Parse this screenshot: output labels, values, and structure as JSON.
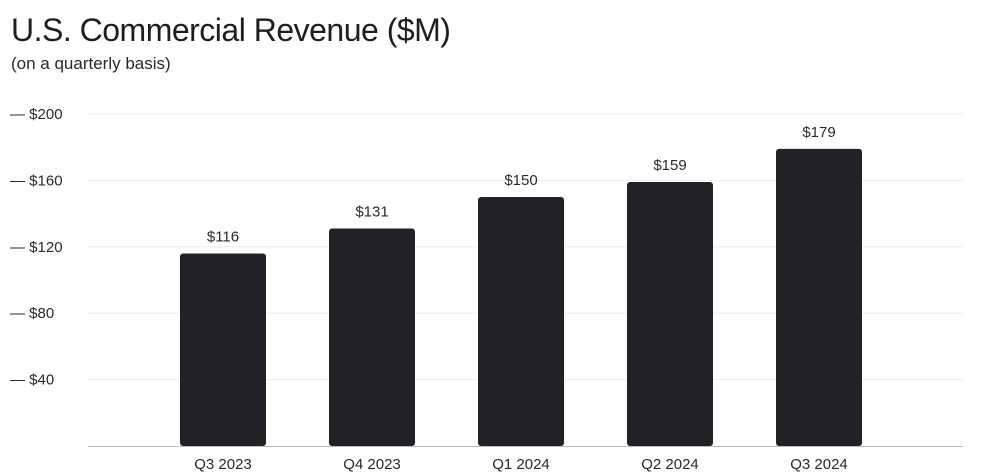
{
  "chart_data": {
    "type": "bar",
    "title": "U.S. Commercial Revenue ($M)",
    "subtitle": "(on a quarterly basis)",
    "categories": [
      "Q3 2023",
      "Q4 2023",
      "Q1 2024",
      "Q2 2024",
      "Q3 2024"
    ],
    "values": [
      116,
      131,
      150,
      159,
      179
    ],
    "value_labels": [
      "$116",
      "$131",
      "$150",
      "$159",
      "$179"
    ],
    "y_ticks": [
      200,
      160,
      120,
      80,
      40
    ],
    "y_tick_labels": [
      "— $200",
      "— $160",
      "— $120",
      "— $80",
      "— $40"
    ],
    "ylim": [
      0,
      200
    ],
    "xlabel": "",
    "ylabel": "",
    "grid": true,
    "bar_color": "#222226",
    "grid_color": "#eeeeee",
    "axis_color": "#bdbdbd"
  }
}
